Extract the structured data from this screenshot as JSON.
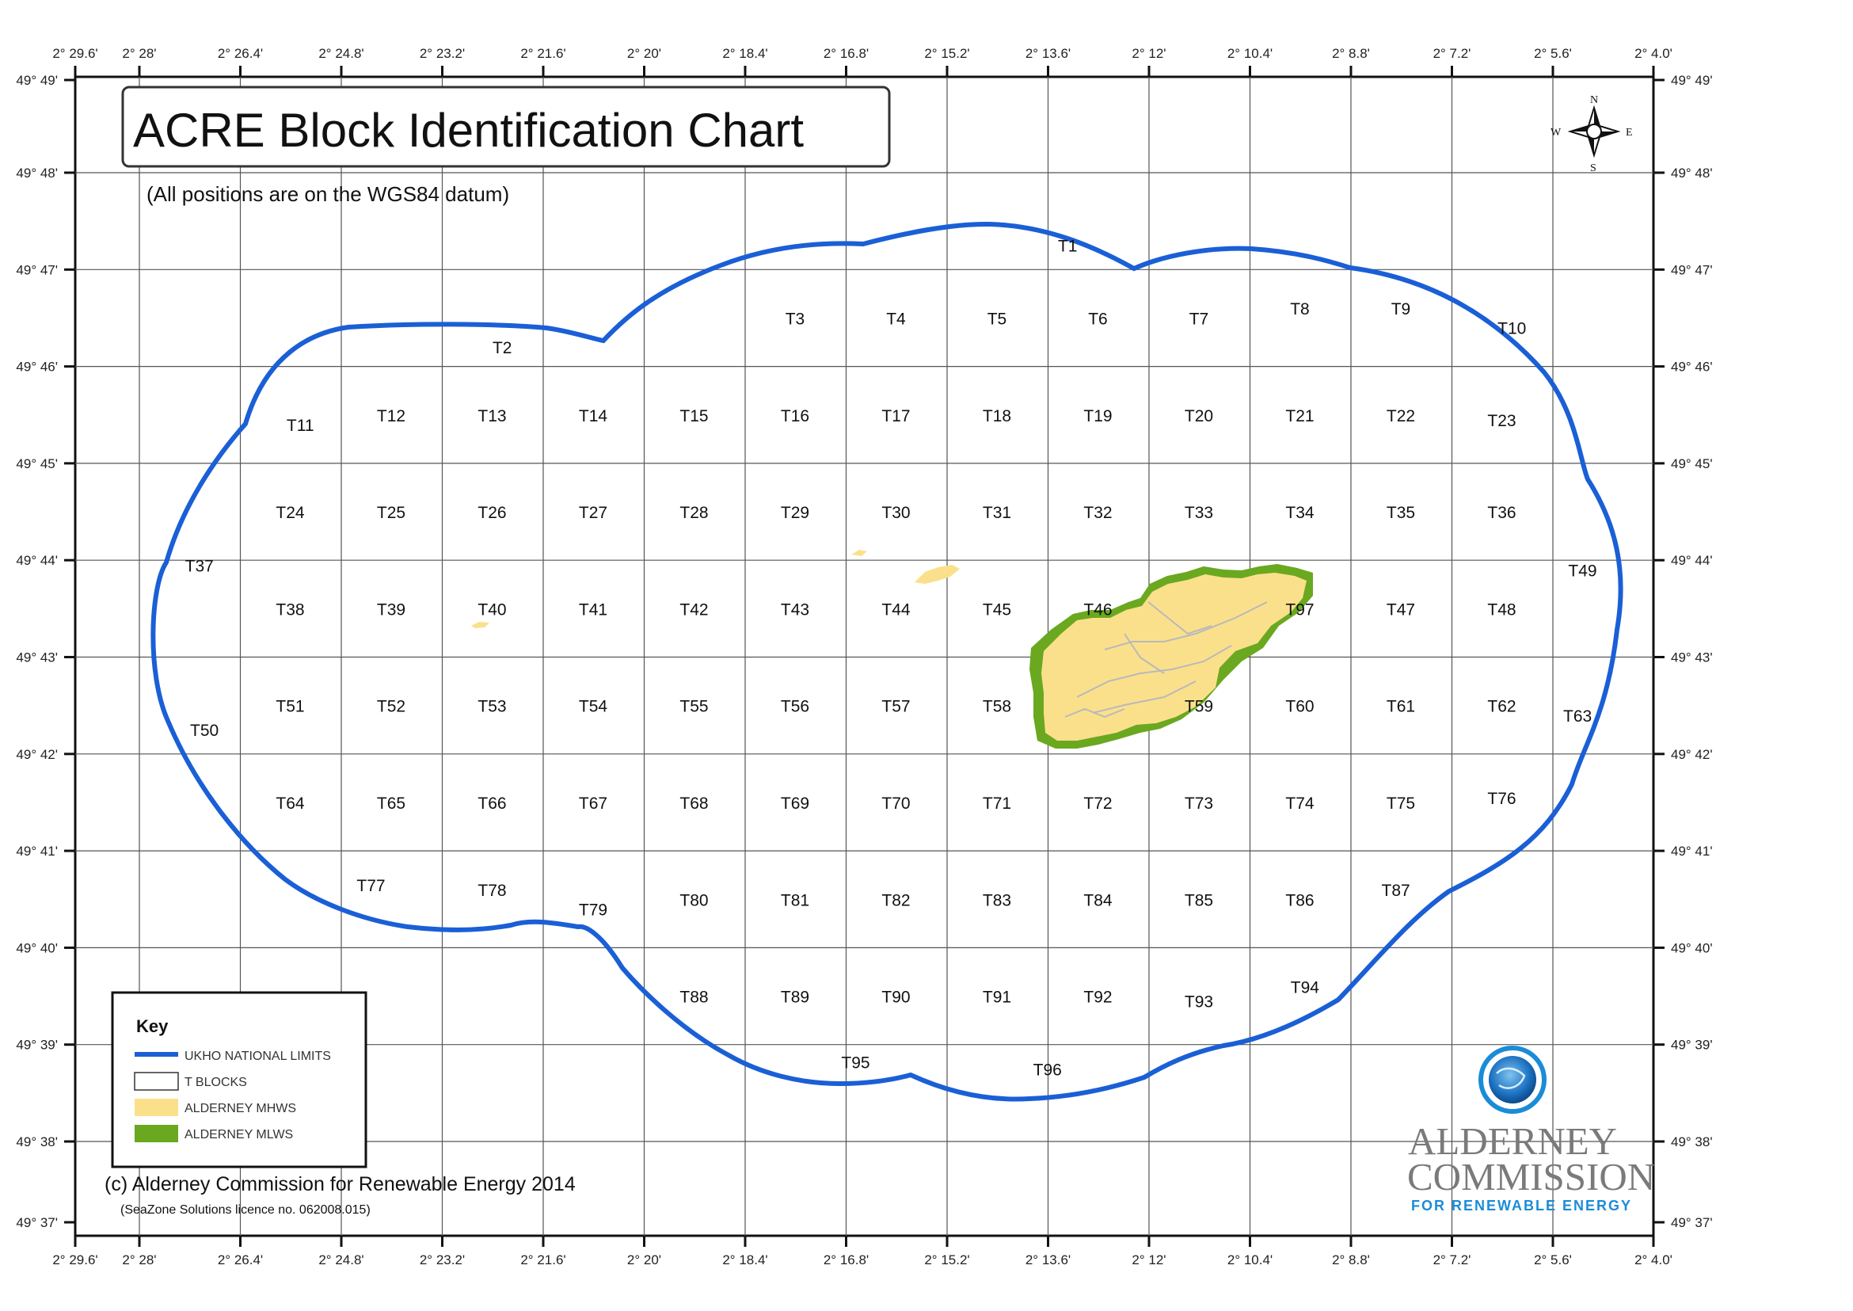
{
  "title": "ACRE Block Identification Chart",
  "subtitle": "(All positions are on the WGS84 datum)",
  "longitude_labels": [
    "2° 29.6'",
    "2° 28'",
    "2° 26.4'",
    "2° 24.8'",
    "2° 23.2'",
    "2° 21.6'",
    "2° 20'",
    "2° 18.4'",
    "2° 16.8'",
    "2° 15.2'",
    "2° 13.6'",
    "2° 12'",
    "2° 10.4'",
    "2° 8.8'",
    "2° 7.2'",
    "2° 5.6'",
    "2° 4.0'"
  ],
  "latitude_labels": [
    "49° 49'",
    "49° 48'",
    "49° 47'",
    "49° 46'",
    "49° 45'",
    "49° 44'",
    "49° 43'",
    "49° 42'",
    "49° 41'",
    "49° 40'",
    "49° 39'",
    "49° 38'",
    "49° 37'"
  ],
  "blocks": [
    {
      "id": "T1",
      "col": 9.2,
      "row": 1.75
    },
    {
      "id": "T2",
      "col": 3.6,
      "row": 2.8
    },
    {
      "id": "T3",
      "col": 6.5,
      "row": 2.5
    },
    {
      "id": "T4",
      "col": 7.5,
      "row": 2.5
    },
    {
      "id": "T5",
      "col": 8.5,
      "row": 2.5
    },
    {
      "id": "T6",
      "col": 9.5,
      "row": 2.5
    },
    {
      "id": "T7",
      "col": 10.5,
      "row": 2.5
    },
    {
      "id": "T8",
      "col": 11.5,
      "row": 2.4
    },
    {
      "id": "T9",
      "col": 12.5,
      "row": 2.4
    },
    {
      "id": "T10",
      "col": 13.6,
      "row": 2.6
    },
    {
      "id": "T11",
      "col": 1.6,
      "row": 3.6
    },
    {
      "id": "T12",
      "col": 2.5,
      "row": 3.5
    },
    {
      "id": "T13",
      "col": 3.5,
      "row": 3.5
    },
    {
      "id": "T14",
      "col": 4.5,
      "row": 3.5
    },
    {
      "id": "T15",
      "col": 5.5,
      "row": 3.5
    },
    {
      "id": "T16",
      "col": 6.5,
      "row": 3.5
    },
    {
      "id": "T17",
      "col": 7.5,
      "row": 3.5
    },
    {
      "id": "T18",
      "col": 8.5,
      "row": 3.5
    },
    {
      "id": "T19",
      "col": 9.5,
      "row": 3.5
    },
    {
      "id": "T20",
      "col": 10.5,
      "row": 3.5
    },
    {
      "id": "T21",
      "col": 11.5,
      "row": 3.5
    },
    {
      "id": "T22",
      "col": 12.5,
      "row": 3.5
    },
    {
      "id": "T23",
      "col": 13.5,
      "row": 3.55
    },
    {
      "id": "T24",
      "col": 1.5,
      "row": 4.5
    },
    {
      "id": "T25",
      "col": 2.5,
      "row": 4.5
    },
    {
      "id": "T26",
      "col": 3.5,
      "row": 4.5
    },
    {
      "id": "T27",
      "col": 4.5,
      "row": 4.5
    },
    {
      "id": "T28",
      "col": 5.5,
      "row": 4.5
    },
    {
      "id": "T29",
      "col": 6.5,
      "row": 4.5
    },
    {
      "id": "T30",
      "col": 7.5,
      "row": 4.5
    },
    {
      "id": "T31",
      "col": 8.5,
      "row": 4.5
    },
    {
      "id": "T32",
      "col": 9.5,
      "row": 4.5
    },
    {
      "id": "T33",
      "col": 10.5,
      "row": 4.5
    },
    {
      "id": "T34",
      "col": 11.5,
      "row": 4.5
    },
    {
      "id": "T35",
      "col": 12.5,
      "row": 4.5
    },
    {
      "id": "T36",
      "col": 13.5,
      "row": 4.5
    },
    {
      "id": "T37",
      "col": 0.6,
      "row": 5.05
    },
    {
      "id": "T38",
      "col": 1.5,
      "row": 5.5
    },
    {
      "id": "T39",
      "col": 2.5,
      "row": 5.5
    },
    {
      "id": "T40",
      "col": 3.5,
      "row": 5.5
    },
    {
      "id": "T41",
      "col": 4.5,
      "row": 5.5
    },
    {
      "id": "T42",
      "col": 5.5,
      "row": 5.5
    },
    {
      "id": "T43",
      "col": 6.5,
      "row": 5.5
    },
    {
      "id": "T44",
      "col": 7.5,
      "row": 5.5
    },
    {
      "id": "T45",
      "col": 8.5,
      "row": 5.5
    },
    {
      "id": "T46",
      "col": 9.5,
      "row": 5.5
    },
    {
      "id": "T97",
      "col": 11.5,
      "row": 5.5
    },
    {
      "id": "T47",
      "col": 12.5,
      "row": 5.5
    },
    {
      "id": "T48",
      "col": 13.5,
      "row": 5.5
    },
    {
      "id": "T49",
      "col": 14.3,
      "row": 5.1
    },
    {
      "id": "T50",
      "col": 0.65,
      "row": 6.75
    },
    {
      "id": "T51",
      "col": 1.5,
      "row": 6.5
    },
    {
      "id": "T52",
      "col": 2.5,
      "row": 6.5
    },
    {
      "id": "T53",
      "col": 3.5,
      "row": 6.5
    },
    {
      "id": "T54",
      "col": 4.5,
      "row": 6.5
    },
    {
      "id": "T55",
      "col": 5.5,
      "row": 6.5
    },
    {
      "id": "T56",
      "col": 6.5,
      "row": 6.5
    },
    {
      "id": "T57",
      "col": 7.5,
      "row": 6.5
    },
    {
      "id": "T58",
      "col": 8.5,
      "row": 6.5
    },
    {
      "id": "T59",
      "col": 10.5,
      "row": 6.5
    },
    {
      "id": "T60",
      "col": 11.5,
      "row": 6.5
    },
    {
      "id": "T61",
      "col": 12.5,
      "row": 6.5
    },
    {
      "id": "T62",
      "col": 13.5,
      "row": 6.5
    },
    {
      "id": "T63",
      "col": 14.25,
      "row": 6.6
    },
    {
      "id": "T64",
      "col": 1.5,
      "row": 7.5
    },
    {
      "id": "T65",
      "col": 2.5,
      "row": 7.5
    },
    {
      "id": "T66",
      "col": 3.5,
      "row": 7.5
    },
    {
      "id": "T67",
      "col": 4.5,
      "row": 7.5
    },
    {
      "id": "T68",
      "col": 5.5,
      "row": 7.5
    },
    {
      "id": "T69",
      "col": 6.5,
      "row": 7.5
    },
    {
      "id": "T70",
      "col": 7.5,
      "row": 7.5
    },
    {
      "id": "T71",
      "col": 8.5,
      "row": 7.5
    },
    {
      "id": "T72",
      "col": 9.5,
      "row": 7.5
    },
    {
      "id": "T73",
      "col": 10.5,
      "row": 7.5
    },
    {
      "id": "T74",
      "col": 11.5,
      "row": 7.5
    },
    {
      "id": "T75",
      "col": 12.5,
      "row": 7.5
    },
    {
      "id": "T76",
      "col": 13.5,
      "row": 7.45
    },
    {
      "id": "T77",
      "col": 2.3,
      "row": 8.35
    },
    {
      "id": "T78",
      "col": 3.5,
      "row": 8.4
    },
    {
      "id": "T79",
      "col": 4.5,
      "row": 8.6
    },
    {
      "id": "T80",
      "col": 5.5,
      "row": 8.5
    },
    {
      "id": "T81",
      "col": 6.5,
      "row": 8.5
    },
    {
      "id": "T82",
      "col": 7.5,
      "row": 8.5
    },
    {
      "id": "T83",
      "col": 8.5,
      "row": 8.5
    },
    {
      "id": "T84",
      "col": 9.5,
      "row": 8.5
    },
    {
      "id": "T85",
      "col": 10.5,
      "row": 8.5
    },
    {
      "id": "T86",
      "col": 11.5,
      "row": 8.5
    },
    {
      "id": "T87",
      "col": 12.45,
      "row": 8.4
    },
    {
      "id": "T88",
      "col": 5.5,
      "row": 9.5
    },
    {
      "id": "T89",
      "col": 6.5,
      "row": 9.5
    },
    {
      "id": "T90",
      "col": 7.5,
      "row": 9.5
    },
    {
      "id": "T91",
      "col": 8.5,
      "row": 9.5
    },
    {
      "id": "T92",
      "col": 9.5,
      "row": 9.5
    },
    {
      "id": "T93",
      "col": 10.5,
      "row": 9.55
    },
    {
      "id": "T94",
      "col": 11.55,
      "row": 9.4
    },
    {
      "id": "T95",
      "col": 7.1,
      "row": 10.18
    },
    {
      "id": "T96",
      "col": 9.0,
      "row": 10.25
    }
  ],
  "compass": {
    "n": "N",
    "s": "S",
    "e": "E",
    "w": "W"
  },
  "key": {
    "title": "Key",
    "items": [
      {
        "label": "UKHO NATIONAL LIMITS",
        "color": "#1a5fd6"
      },
      {
        "label": "T BLOCKS",
        "color": "#ffffff"
      },
      {
        "label": "ALDERNEY MHWS",
        "color": "#fbe08c"
      },
      {
        "label": "ALDERNEY MLWS",
        "color": "#6aa820"
      }
    ]
  },
  "copyright": "(c) Alderney Commission for Renewable Energy 2014",
  "licence": "(SeaZone Solutions licence no. 062008.015)",
  "logo": {
    "line1": "ALDERNEY",
    "line2": "COMMISSION",
    "line3": "FOR RENEWABLE ENERGY"
  },
  "colors": {
    "boundary": "#1a5fd6",
    "land": "#fbe08c",
    "low_water": "#6aa820",
    "grid": "#222222"
  }
}
